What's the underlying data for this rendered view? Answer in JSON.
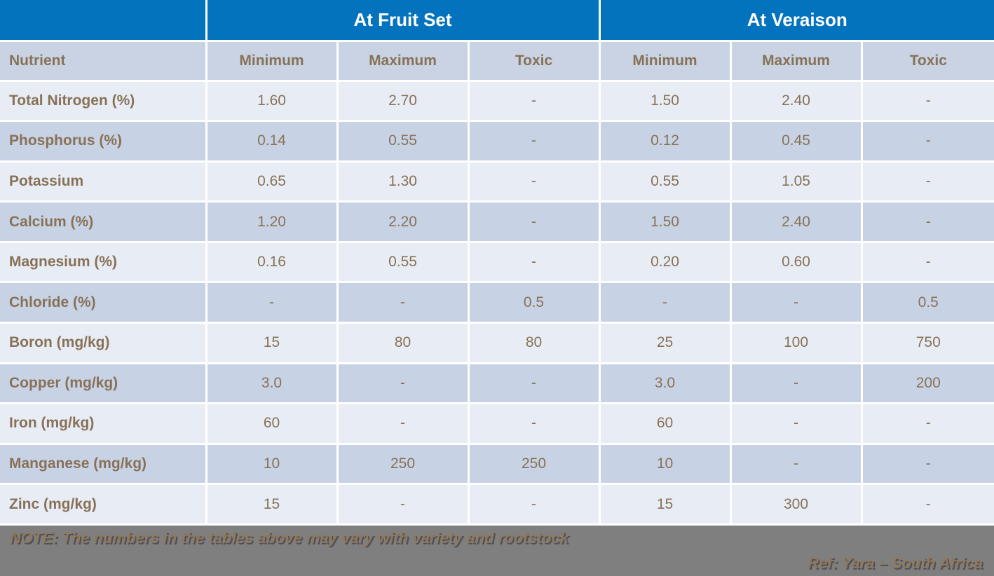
{
  "table": {
    "groups": [
      {
        "label": "At Fruit Set"
      },
      {
        "label": "At Veraison"
      }
    ],
    "columns": [
      "Nutrient",
      "Minimum",
      "Maximum",
      "Toxic",
      "Minimum",
      "Maximum",
      "Toxic"
    ],
    "rows": [
      {
        "nutrient": "Total Nitrogen (%)",
        "values": [
          "1.60",
          "2.70",
          "-",
          "1.50",
          "2.40",
          "-"
        ]
      },
      {
        "nutrient": "Phosphorus (%)",
        "values": [
          "0.14",
          "0.55",
          "-",
          "0.12",
          "0.45",
          "-"
        ]
      },
      {
        "nutrient": "Potassium",
        "values": [
          "0.65",
          "1.30",
          "-",
          "0.55",
          "1.05",
          "-"
        ]
      },
      {
        "nutrient": "Calcium (%)",
        "values": [
          "1.20",
          "2.20",
          "-",
          "1.50",
          "2.40",
          "-"
        ]
      },
      {
        "nutrient": "Magnesium (%)",
        "values": [
          "0.16",
          "0.55",
          "-",
          "0.20",
          "0.60",
          "-"
        ]
      },
      {
        "nutrient": "Chloride (%)",
        "values": [
          "-",
          "-",
          "0.5",
          "-",
          "-",
          "0.5"
        ]
      },
      {
        "nutrient": "Boron (mg/kg)",
        "values": [
          "15",
          "80",
          "80",
          "25",
          "100",
          "750"
        ]
      },
      {
        "nutrient": "Copper (mg/kg)",
        "values": [
          "3.0",
          "-",
          "-",
          "3.0",
          "-",
          "200"
        ]
      },
      {
        "nutrient": "Iron (mg/kg)",
        "values": [
          "60",
          "-",
          "-",
          "60",
          "-",
          "-"
        ]
      },
      {
        "nutrient": "Manganese (mg/kg)",
        "values": [
          "10",
          "250",
          "250",
          "10",
          "-",
          "-"
        ]
      },
      {
        "nutrient": "Zinc (mg/kg)",
        "values": [
          "15",
          "-",
          "-",
          "15",
          "300",
          "-"
        ]
      }
    ]
  },
  "footer": {
    "note": "NOTE: The numbers in the tables above may vary with variety and rootstock",
    "ref": "Ref: Yara – South Africa"
  },
  "colors": {
    "header_blue": "#0473be",
    "column_header_bg": "#c9d3e4",
    "row_light": "#e8ecf5",
    "row_dark": "#c8d2e5",
    "text_brown": "#877257",
    "footer_gray": "#7f7f7f",
    "footer_text": "#8d795c"
  }
}
